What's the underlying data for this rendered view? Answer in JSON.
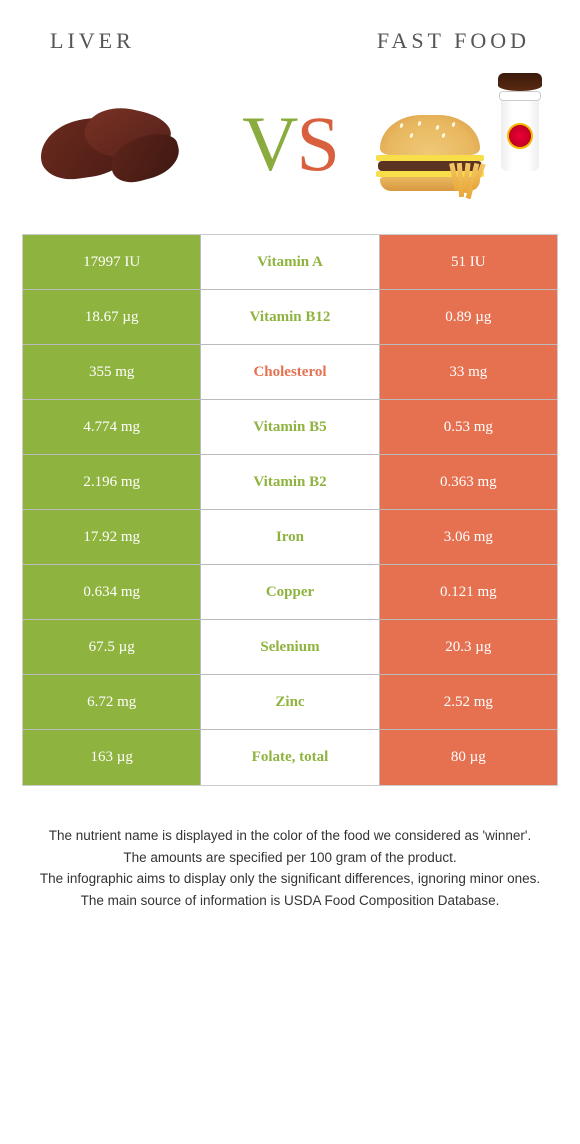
{
  "header": {
    "left_title": "LIVER",
    "right_title": "FAST FOOD"
  },
  "vs_label": {
    "v": "V",
    "s": "S"
  },
  "colors": {
    "left_bg": "#8fb33f",
    "right_bg": "#e57150",
    "left_text": "#8fb33f",
    "right_text": "#e57150",
    "liver": "#6b2a1e",
    "liver_dark": "#4a1c14"
  },
  "rows": [
    {
      "left": "17997 IU",
      "mid": "Vitamin A",
      "right": "51 IU",
      "winner": "left"
    },
    {
      "left": "18.67 µg",
      "mid": "Vitamin B12",
      "right": "0.89 µg",
      "winner": "left"
    },
    {
      "left": "355 mg",
      "mid": "Cholesterol",
      "right": "33 mg",
      "winner": "right"
    },
    {
      "left": "4.774 mg",
      "mid": "Vitamin B5",
      "right": "0.53 mg",
      "winner": "left"
    },
    {
      "left": "2.196 mg",
      "mid": "Vitamin B2",
      "right": "0.363 mg",
      "winner": "left"
    },
    {
      "left": "17.92 mg",
      "mid": "Iron",
      "right": "3.06 mg",
      "winner": "left"
    },
    {
      "left": "0.634 mg",
      "mid": "Copper",
      "right": "0.121 mg",
      "winner": "left"
    },
    {
      "left": "67.5 µg",
      "mid": "Selenium",
      "right": "20.3 µg",
      "winner": "left"
    },
    {
      "left": "6.72 mg",
      "mid": "Zinc",
      "right": "2.52 mg",
      "winner": "left"
    },
    {
      "left": "163 µg",
      "mid": "Folate, total",
      "right": "80 µg",
      "winner": "left"
    }
  ],
  "notes": [
    "The nutrient name is displayed in the color of the food we considered as 'winner'.",
    "The amounts are specified per 100 gram of the product.",
    "The infographic aims to display only the significant differences, ignoring minor ones.",
    "The main source of information is USDA Food Composition Database."
  ]
}
